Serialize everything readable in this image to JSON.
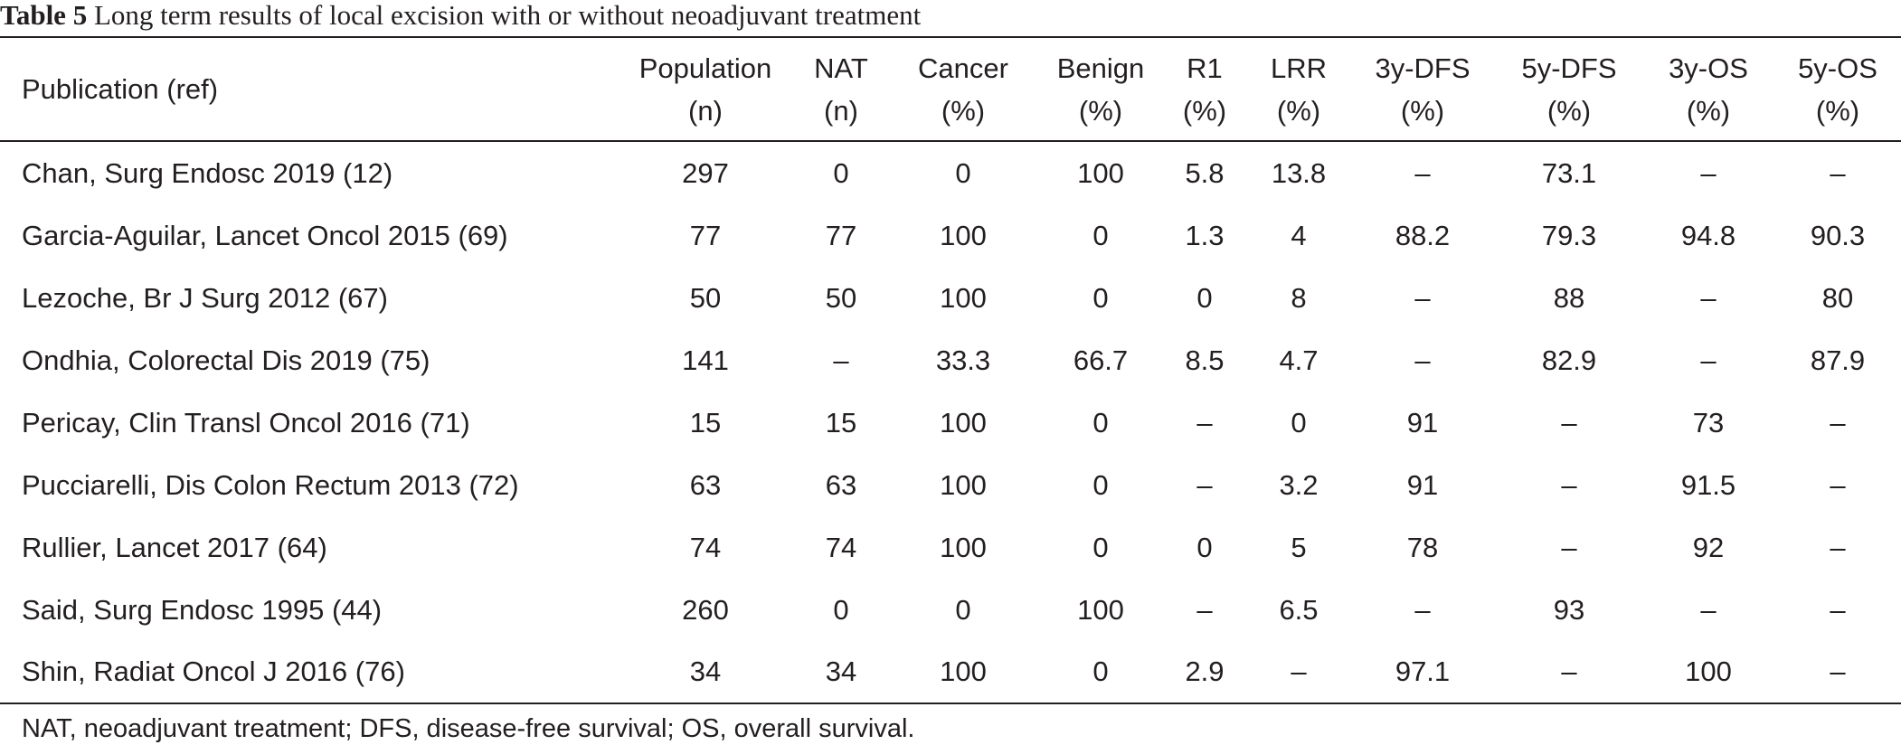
{
  "caption": {
    "label": "Table 5",
    "text": " Long term results of local excision with or without neoadjuvant treatment"
  },
  "columns": [
    {
      "line1": "Publication (ref)",
      "line2": ""
    },
    {
      "line1": "Population",
      "line2": "(n)"
    },
    {
      "line1": "NAT",
      "line2": "(n)"
    },
    {
      "line1": "Cancer",
      "line2": "(%)"
    },
    {
      "line1": "Benign",
      "line2": "(%)"
    },
    {
      "line1": "R1",
      "line2": "(%)"
    },
    {
      "line1": "LRR",
      "line2": "(%)"
    },
    {
      "line1": "3y-DFS",
      "line2": "(%)"
    },
    {
      "line1": "5y-DFS",
      "line2": "(%)"
    },
    {
      "line1": "3y-OS",
      "line2": "(%)"
    },
    {
      "line1": "5y-OS",
      "line2": "(%)"
    }
  ],
  "rows": [
    [
      "Chan, Surg Endosc 2019 (12)",
      "297",
      "0",
      "0",
      "100",
      "5.8",
      "13.8",
      "–",
      "73.1",
      "–",
      "–"
    ],
    [
      "Garcia-Aguilar, Lancet Oncol 2015 (69)",
      "77",
      "77",
      "100",
      "0",
      "1.3",
      "4",
      "88.2",
      "79.3",
      "94.8",
      "90.3"
    ],
    [
      "Lezoche, Br J Surg 2012 (67)",
      "50",
      "50",
      "100",
      "0",
      "0",
      "8",
      "–",
      "88",
      "–",
      "80"
    ],
    [
      "Ondhia, Colorectal Dis 2019 (75)",
      "141",
      "–",
      "33.3",
      "66.7",
      "8.5",
      "4.7",
      "–",
      "82.9",
      "–",
      "87.9"
    ],
    [
      "Pericay, Clin Transl Oncol 2016 (71)",
      "15",
      "15",
      "100",
      "0",
      "–",
      "0",
      "91",
      "–",
      "73",
      "–"
    ],
    [
      "Pucciarelli, Dis Colon Rectum 2013 (72)",
      "63",
      "63",
      "100",
      "0",
      "–",
      "3.2",
      "91",
      "–",
      "91.5",
      "–"
    ],
    [
      "Rullier, Lancet 2017 (64)",
      "74",
      "74",
      "100",
      "0",
      "0",
      "5",
      "78",
      "–",
      "92",
      "–"
    ],
    [
      "Said, Surg Endosc 1995 (44)",
      "260",
      "0",
      "0",
      "100",
      "–",
      "6.5",
      "–",
      "93",
      "–",
      "–"
    ],
    [
      "Shin, Radiat Oncol J 2016 (76)",
      "34",
      "34",
      "100",
      "0",
      "2.9",
      "–",
      "97.1",
      "–",
      "100",
      "–"
    ]
  ],
  "footnote": "NAT, neoadjuvant treatment; DFS, disease-free survival; OS, overall survival."
}
